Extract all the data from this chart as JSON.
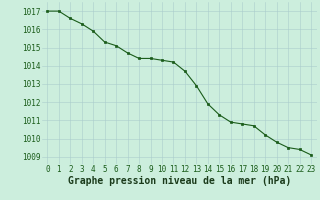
{
  "x": [
    0,
    1,
    2,
    3,
    4,
    5,
    6,
    7,
    8,
    9,
    10,
    11,
    12,
    13,
    14,
    15,
    16,
    17,
    18,
    19,
    20,
    21,
    22,
    23
  ],
  "y": [
    1017.0,
    1017.0,
    1016.6,
    1016.3,
    1015.9,
    1015.3,
    1015.1,
    1014.7,
    1014.4,
    1014.4,
    1014.3,
    1014.2,
    1013.7,
    1012.9,
    1011.9,
    1011.3,
    1010.9,
    1010.8,
    1010.7,
    1010.2,
    1009.8,
    1009.5,
    1009.4,
    1009.1
  ],
  "line_color": "#1a5c1a",
  "marker": "s",
  "marker_size": 1.8,
  "bg_color": "#cceedd",
  "grid_color": "#aacccc",
  "xlabel": "Graphe pression niveau de la mer (hPa)",
  "xlabel_fontsize": 7.0,
  "ytick_vals": [
    1009,
    1010,
    1011,
    1012,
    1013,
    1014,
    1015,
    1016,
    1017
  ],
  "ylim": [
    1008.6,
    1017.5
  ],
  "xlim": [
    -0.5,
    23.5
  ],
  "xtick_labels": [
    "0",
    "1",
    "2",
    "3",
    "4",
    "5",
    "6",
    "7",
    "8",
    "9",
    "10",
    "11",
    "12",
    "13",
    "14",
    "15",
    "16",
    "17",
    "18",
    "19",
    "20",
    "21",
    "22",
    "23"
  ],
  "tick_fontsize": 5.5,
  "linewidth": 0.8
}
